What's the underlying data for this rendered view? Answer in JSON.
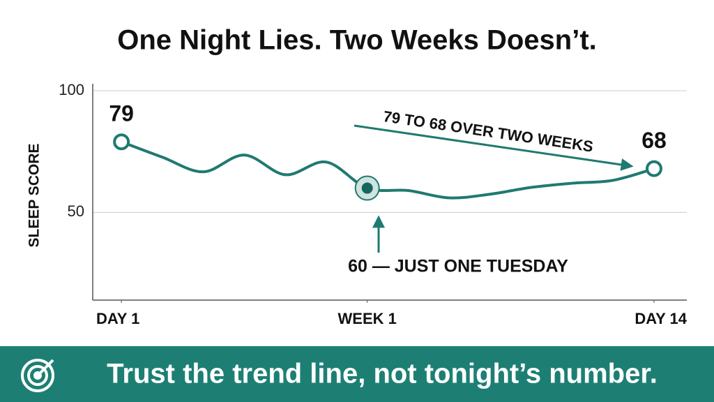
{
  "chart_data": {
    "type": "line",
    "title": "One Night Lies. Two Weeks Doesn’t.",
    "y_label": "SLEEP SCORE",
    "x": [
      1,
      2,
      3,
      4,
      5,
      6,
      7,
      8,
      9,
      10,
      11,
      12,
      13,
      14
    ],
    "series": [
      {
        "name": "Sleep score",
        "color": "#1f7a70",
        "values": [
          79,
          72.7,
          66.7,
          73.6,
          65.5,
          70.7,
          60,
          59,
          56,
          57.5,
          60.3,
          62,
          63.2,
          68
        ]
      }
    ],
    "xlim": [
      0.3,
      14.8
    ],
    "xticks": [
      {
        "value": 1,
        "label": "DAY 1"
      },
      {
        "value": 7,
        "label": "WEEK 1"
      },
      {
        "value": 14,
        "label": "DAY 14"
      }
    ],
    "ylim": [
      14,
      100
    ],
    "yticks": [
      50,
      100
    ],
    "grid": true,
    "annotations": [
      "79 TO 68 OVER TWO WEEKS",
      "60 — JUST ONE TUESDAY"
    ]
  },
  "banner": "Trust the trend line, not tonight’s number."
}
